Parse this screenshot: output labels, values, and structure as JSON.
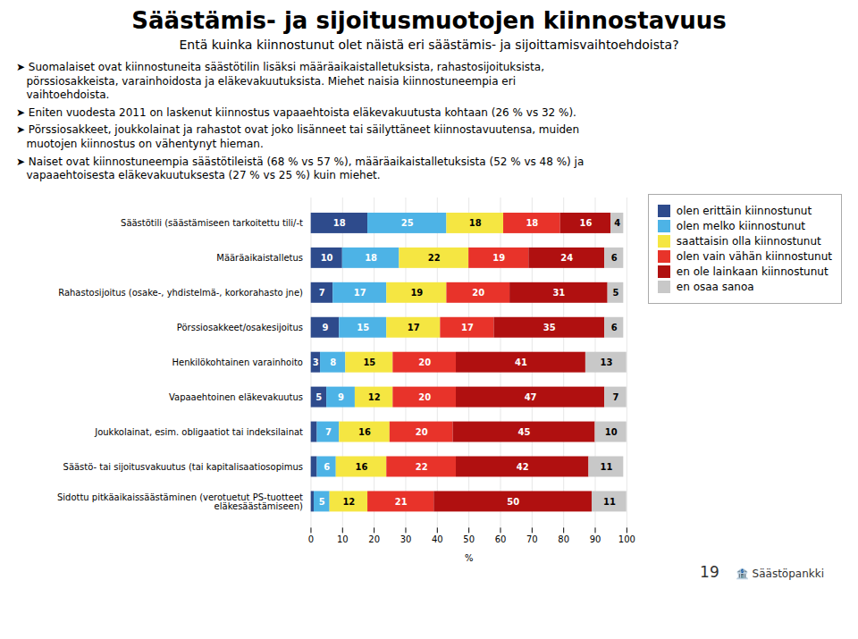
{
  "chart_data": {
    "type": "bar",
    "orientation": "horizontal",
    "stacked": true,
    "data_labels": true,
    "grid": true,
    "legend": "right",
    "title": "Säästämis- ja sijoitusmuotojen kiinnostavuus",
    "subtitle": "Entä kuinka kiinnostunut olet näistä eri säästämis- ja sijoittamisvaihtoehdoista?",
    "annotations": [
      "➤ Suomalaiset ovat kiinnostuneita säästötilin lisäksi määräaikaistalletuksista, rahastosijoituksista,\n   pörssiosakkeista, varainhoidosta ja eläkevakuutuksista. Miehet naisia kiinnostuneempia eri\n   vaihtoehdoista.",
      "➤ Eniten vuodesta 2011 on laskenut kiinnostus vapaaehtoista eläkevakuutusta kohtaan (26 % vs 32 %).",
      "➤ Pörssiosakkeet, joukkolainat ja rahastot ovat joko lisänneet tai säilyttäneet kiinnostavuutensa, muiden\n   muotojen kiinnostus on vähentynyt hieman.",
      "➤ Naiset ovat kiinnostuneempia säästötileistä (68 % vs 57 %), määräaikaistalletuksista (52 % vs 48 %) ja\n   vapaaehtoisesta eläkevakuutuksesta (27 % vs 25 %) kuin miehet."
    ],
    "footer": [
      "19",
      "🏦 Säästöpankki"
    ],
    "categories": [
      "Säästötili (säästämiseen tarkoitettu tili/-t",
      "Määräaikaistalletus",
      "Rahastosijoitus (osake-, yhdistelmä-, korkorahasto jne)",
      "Pörssiosakkeet/osakesijoitus",
      "Henkilökohtainen varainhoito",
      "Vapaaehtoinen eläkevakuutus",
      "Joukkolainat, esim. obligaatiot tai indeksilainat",
      "Säästö- tai sijoitusvakuutus (tai kapitalisaatiosopimus",
      "Sidottu pitkäaikaissäästäminen (verotuetut PS-tuotteet\neläkesäästämiseen)"
    ],
    "series": [
      {
        "name": "olen erittäin kiinnostunut",
        "color": "#2e4b8c",
        "values": [
          18,
          10,
          7,
          9,
          3,
          5,
          2,
          2,
          1
        ],
        "value_labels": [
          "18",
          "10",
          "7",
          "9",
          "3",
          "5",
          null,
          null,
          null
        ]
      },
      {
        "name": "olen melko kiinnostunut",
        "color": "#4db3e6",
        "values": [
          25,
          18,
          17,
          15,
          8,
          9,
          7,
          6,
          5
        ]
      },
      {
        "name": "saattaisin olla kiinnostunut",
        "color": "#f5e642",
        "values": [
          18,
          22,
          19,
          17,
          15,
          12,
          16,
          16,
          12
        ]
      },
      {
        "name": "olen vain vähän kiinnostunut",
        "color": "#e8332a",
        "values": [
          18,
          19,
          20,
          17,
          20,
          20,
          20,
          22,
          21
        ]
      },
      {
        "name": "en ole lainkaan kiinnostunut",
        "color": "#b01010",
        "values": [
          16,
          24,
          31,
          35,
          41,
          47,
          45,
          42,
          50
        ]
      },
      {
        "name": "en osaa sanoa",
        "color": "#c8c8c8",
        "values": [
          4,
          6,
          5,
          6,
          13,
          7,
          10,
          11,
          11
        ]
      }
    ],
    "xlabel": "%",
    "xlim": [
      0,
      100
    ],
    "xticks": [
      0,
      10,
      20,
      30,
      40,
      50,
      60,
      70,
      80,
      90,
      100
    ]
  }
}
